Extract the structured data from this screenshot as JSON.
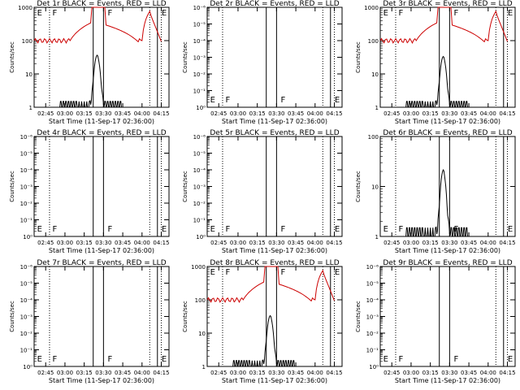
{
  "chart_data": [
    {
      "type": "line",
      "title": "Det 1r BLACK = Events, RED = LLD",
      "xlabel": "Start Time (11-Sep-17 02:36:00)",
      "ylabel": "Counts/sec",
      "yscale": "log",
      "ylim": [
        1,
        1000
      ],
      "yticks": [
        "1",
        "10",
        "100",
        "1000"
      ],
      "xticks": [
        "02:45",
        "03:00",
        "03:15",
        "03:30",
        "03:45",
        "04:00",
        "04:15"
      ],
      "black_peak": 35,
      "has_red": true,
      "red_base": 100,
      "red_peak": 700
    },
    {
      "type": "line",
      "title": "Det 2r BLACK = Events, RED = LLD",
      "xlabel": "Start Time (11-Sep-17 02:36:00)",
      "ylabel": "Counts/sec",
      "yscale": "log",
      "ylim": [
        1,
        1e-06
      ],
      "yticks": [
        "10⁰",
        "10⁻¹",
        "10⁻²",
        "10⁻³",
        "10⁻⁴",
        "10⁻⁵",
        "10⁻⁶"
      ],
      "xticks": [
        "02:45",
        "03:00",
        "03:15",
        "03:30",
        "03:45",
        "04:00",
        "04:15"
      ],
      "black_peak": 0,
      "has_red": false
    },
    {
      "type": "line",
      "title": "Det 3r BLACK = Events, RED = LLD",
      "xlabel": "Start Time (11-Sep-17 02:36:00)",
      "ylabel": "Counts/sec",
      "yscale": "log",
      "ylim": [
        1,
        1000
      ],
      "yticks": [
        "1",
        "10",
        "100",
        "1000"
      ],
      "xticks": [
        "02:45",
        "03:00",
        "03:15",
        "03:30",
        "03:45",
        "04:00",
        "04:15"
      ],
      "black_peak": 32,
      "has_red": true,
      "red_base": 100,
      "red_peak": 700
    },
    {
      "type": "line",
      "title": "Det 4r BLACK = Events, RED = LLD",
      "xlabel": "Start Time (11-Sep-17 02:36:00)",
      "ylabel": "Counts/sec",
      "yscale": "log",
      "ylim": [
        1,
        1e-06
      ],
      "yticks": [
        "10⁰",
        "10⁻¹",
        "10⁻²",
        "10⁻³",
        "10⁻⁴",
        "10⁻⁵",
        "10⁻⁶"
      ],
      "xticks": [
        "02:45",
        "03:00",
        "03:15",
        "03:30",
        "03:45",
        "04:00",
        "04:15"
      ],
      "black_peak": 0,
      "has_red": false
    },
    {
      "type": "line",
      "title": "Det 5r BLACK = Events, RED = LLD",
      "xlabel": "Start Time (11-Sep-17 02:36:00)",
      "ylabel": "Counts/sec",
      "yscale": "log",
      "ylim": [
        1,
        1e-06
      ],
      "yticks": [
        "10⁰",
        "10⁻¹",
        "10⁻²",
        "10⁻³",
        "10⁻⁴",
        "10⁻⁵",
        "10⁻⁶"
      ],
      "xticks": [
        "02:45",
        "03:00",
        "03:15",
        "03:30",
        "03:45",
        "04:00",
        "04:15"
      ],
      "black_peak": 0,
      "has_red": false
    },
    {
      "type": "line",
      "title": "Det 6r BLACK = Events, RED = LLD",
      "xlabel": "Start Time (11-Sep-17 02:36:00)",
      "ylabel": "Counts/sec",
      "yscale": "log",
      "ylim": [
        1,
        100
      ],
      "yticks": [
        "1",
        "10",
        "100"
      ],
      "xticks": [
        "02:45",
        "03:00",
        "03:15",
        "03:30",
        "03:45",
        "04:00",
        "04:15"
      ],
      "black_peak": 20,
      "has_red": false
    },
    {
      "type": "line",
      "title": "Det 7r BLACK = Events, RED = LLD",
      "xlabel": "Start Time (11-Sep-17 02:36:00)",
      "ylabel": "Counts/sec",
      "yscale": "log",
      "ylim": [
        1,
        1e-06
      ],
      "yticks": [
        "10⁰",
        "10⁻¹",
        "10⁻²",
        "10⁻³",
        "10⁻⁴",
        "10⁻⁵",
        "10⁻⁶"
      ],
      "xticks": [
        "02:45",
        "03:00",
        "03:15",
        "03:30",
        "03:45",
        "04:00",
        "04:15"
      ],
      "black_peak": 0,
      "has_red": false
    },
    {
      "type": "line",
      "title": "Det 8r BLACK = Events, RED = LLD",
      "xlabel": "Start Time (11-Sep-17 02:36:00)",
      "ylabel": "Counts/sec",
      "yscale": "log",
      "ylim": [
        1,
        1000
      ],
      "yticks": [
        "1",
        "10",
        "100",
        "1000"
      ],
      "xticks": [
        "02:45",
        "03:00",
        "03:15",
        "03:30",
        "03:45",
        "04:00",
        "04:15"
      ],
      "black_peak": 32,
      "has_red": true,
      "red_base": 100,
      "red_peak": 700
    },
    {
      "type": "line",
      "title": "Det 9r BLACK = Events, RED = LLD",
      "xlabel": "Start Time (11-Sep-17 02:36:00)",
      "ylabel": "Counts/sec",
      "yscale": "log",
      "ylim": [
        1,
        1e-06
      ],
      "yticks": [
        "10⁰",
        "10⁻¹",
        "10⁻²",
        "10⁻³",
        "10⁻⁴",
        "10⁻⁵",
        "10⁻⁶"
      ],
      "xticks": [
        "02:45",
        "03:00",
        "03:15",
        "03:30",
        "03:45",
        "04:00",
        "04:15"
      ],
      "black_peak": 0,
      "has_red": false
    }
  ],
  "interval_markers": [
    "E",
    "F",
    "F",
    "E"
  ],
  "colors": {
    "events": "#000000",
    "lld": "#cc0000"
  }
}
